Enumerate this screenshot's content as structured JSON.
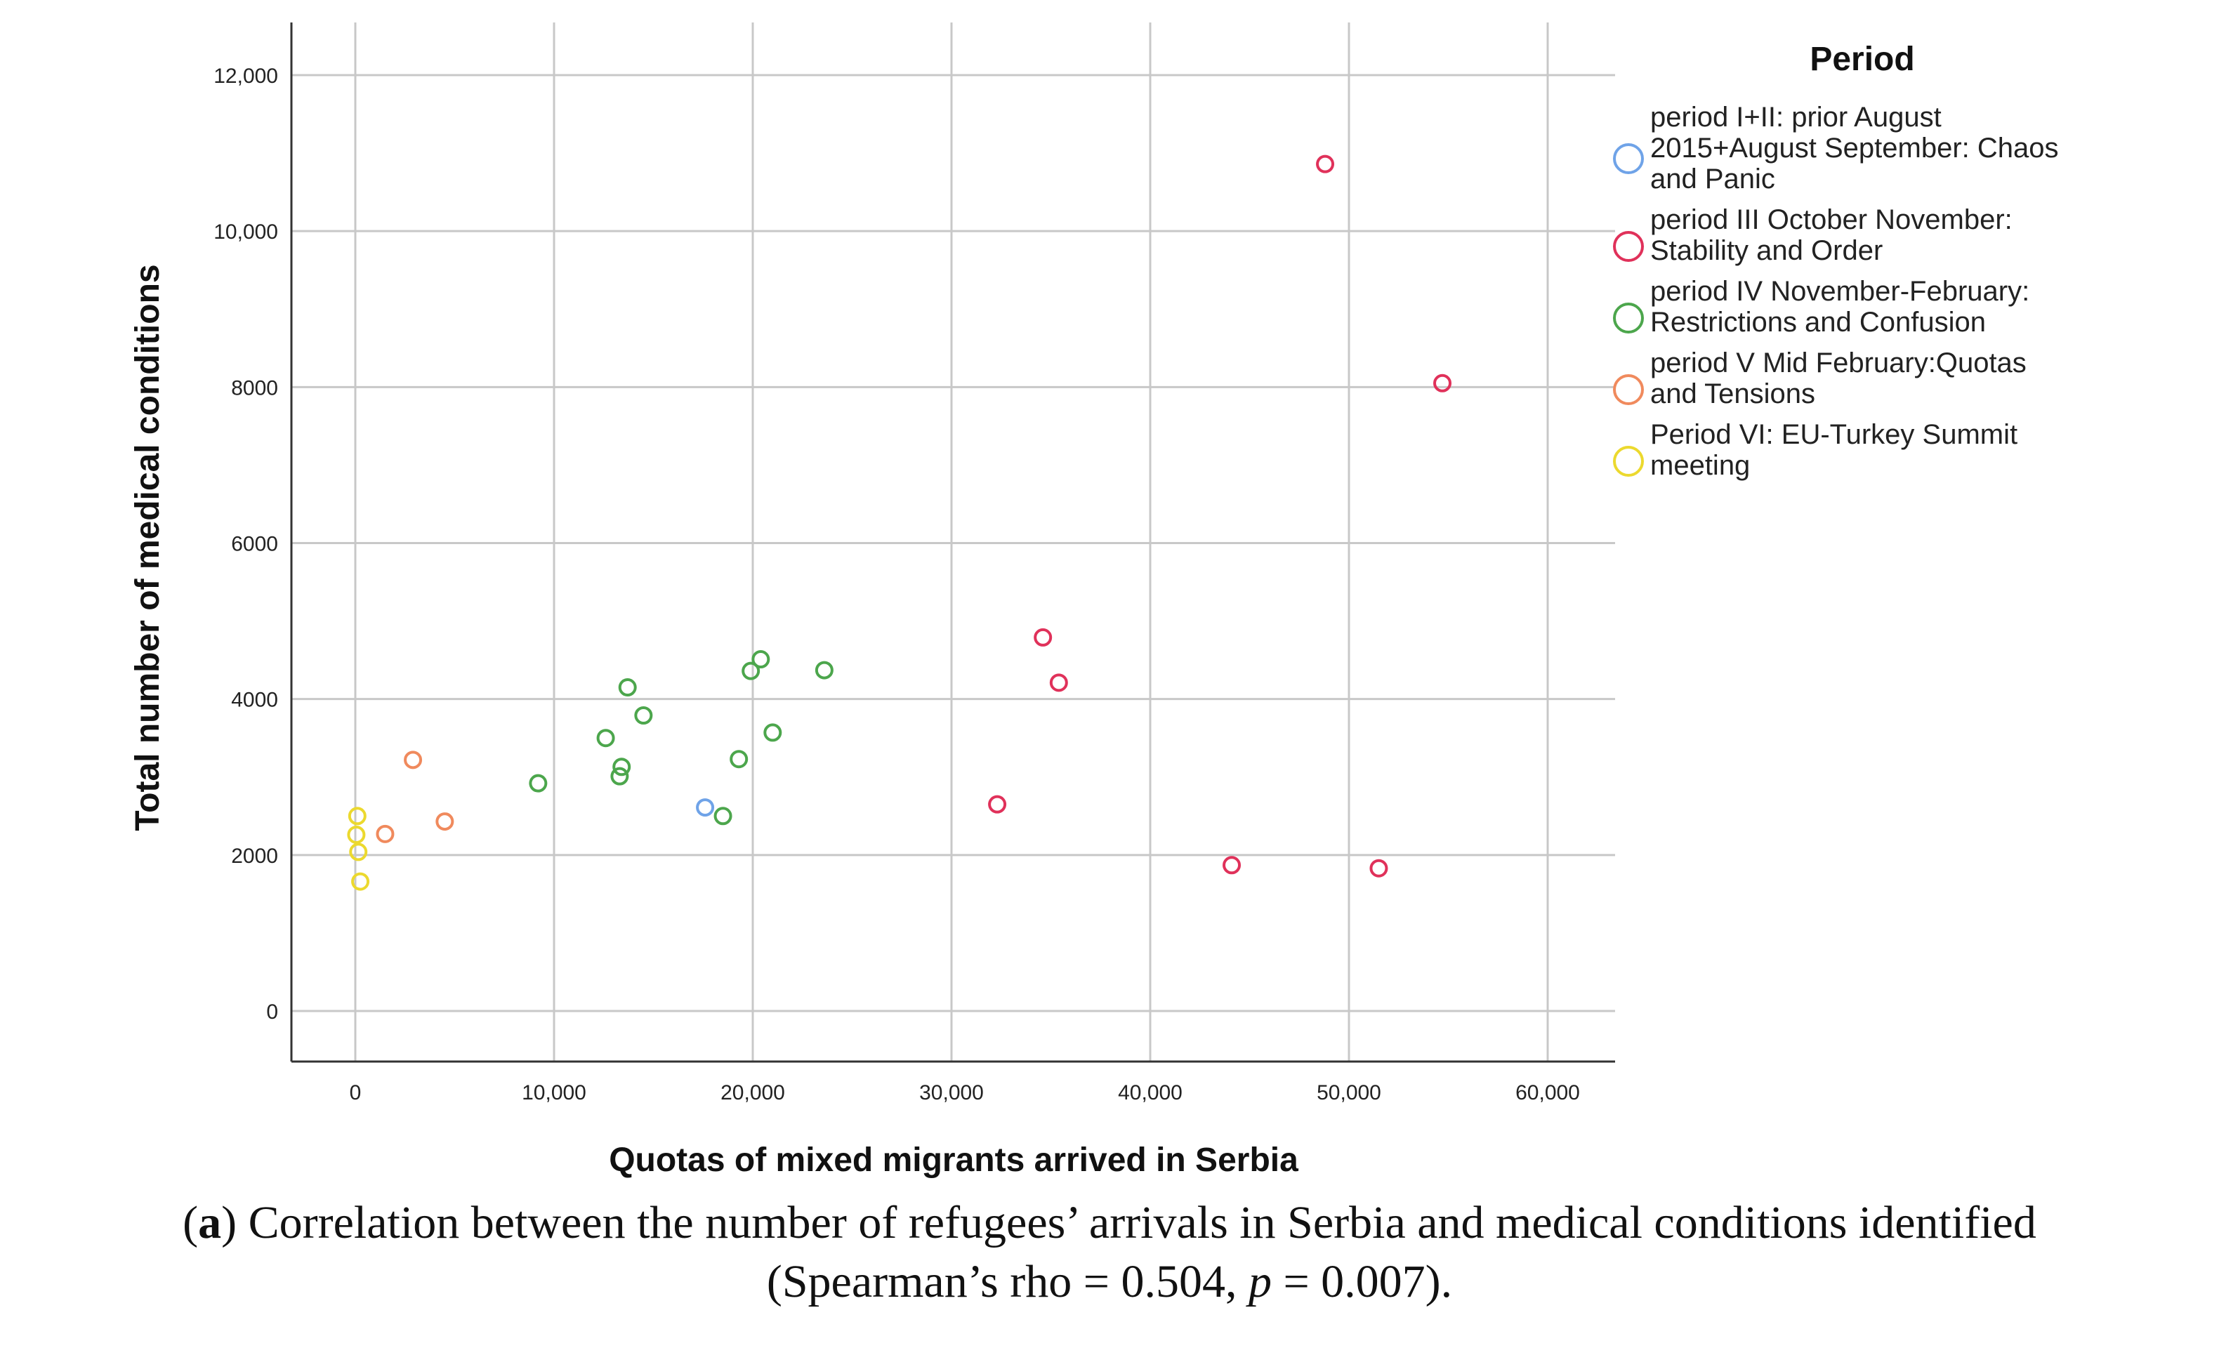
{
  "chart_data": {
    "type": "scatter",
    "title": "",
    "xlabel": "Quotas of mixed migrants arrived in Serbia",
    "ylabel": "Total number of medical conditions",
    "xlim": [
      -3000,
      63000
    ],
    "ylim": [
      -600,
      12600
    ],
    "x_ticks": [
      {
        "value": 0,
        "label": "0"
      },
      {
        "value": 10000,
        "label": "10,000"
      },
      {
        "value": 20000,
        "label": "20,000"
      },
      {
        "value": 30000,
        "label": "30,000"
      },
      {
        "value": 40000,
        "label": "40,000"
      },
      {
        "value": 50000,
        "label": "50,000"
      },
      {
        "value": 60000,
        "label": "60,000"
      }
    ],
    "y_ticks": [
      {
        "value": 0,
        "label": "0"
      },
      {
        "value": 2000,
        "label": "2000"
      },
      {
        "value": 4000,
        "label": "4000"
      },
      {
        "value": 6000,
        "label": "6000"
      },
      {
        "value": 8000,
        "label": "8000"
      },
      {
        "value": 10000,
        "label": "10,000"
      },
      {
        "value": 12000,
        "label": "12,000"
      }
    ],
    "grid": true,
    "legend": {
      "title": "Period",
      "position": "right"
    },
    "series": [
      {
        "name": "period I+II: prior August 2015+August September: Chaos and Panic",
        "name_lines": [
          "period I+II: prior August",
          "2015+August September: Chaos",
          "and Panic"
        ],
        "color": "#6fa3e8",
        "points": [
          [
            17600,
            2610
          ]
        ]
      },
      {
        "name": "period III October November: Stability and Order",
        "name_lines": [
          "period III October November:",
          "Stability and Order"
        ],
        "color": "#e0315a",
        "points": [
          [
            48800,
            10860
          ],
          [
            54700,
            8050
          ],
          [
            34600,
            4790
          ],
          [
            35400,
            4210
          ],
          [
            32300,
            2650
          ],
          [
            44100,
            1870
          ],
          [
            51500,
            1830
          ]
        ]
      },
      {
        "name": "period IV November-February: Restrictions and Confusion",
        "name_lines": [
          "period IV November-February:",
          "Restrictions and Confusion"
        ],
        "color": "#4ca64c",
        "points": [
          [
            20400,
            4510
          ],
          [
            19900,
            4360
          ],
          [
            23600,
            4370
          ],
          [
            13700,
            4150
          ],
          [
            14500,
            3790
          ],
          [
            21000,
            3570
          ],
          [
            12600,
            3500
          ],
          [
            19300,
            3230
          ],
          [
            13400,
            3130
          ],
          [
            13300,
            3010
          ],
          [
            9200,
            2920
          ],
          [
            18500,
            2500
          ]
        ]
      },
      {
        "name": "period V Mid February:Quotas and Tensions",
        "name_lines": [
          "period V Mid February:Quotas",
          "and Tensions"
        ],
        "color": "#f08a5d",
        "points": [
          [
            2900,
            3220
          ],
          [
            4500,
            2430
          ],
          [
            1500,
            2270
          ]
        ]
      },
      {
        "name": "Period VI: EU-Turkey Summit meeting",
        "name_lines": [
          "Period VI: EU-Turkey Summit",
          "meeting"
        ],
        "color": "#ecd92e",
        "points": [
          [
            100,
            2500
          ],
          [
            50,
            2260
          ],
          [
            150,
            2040
          ],
          [
            250,
            1660
          ]
        ]
      }
    ]
  },
  "caption": {
    "label": "a",
    "text_before": ") Correlation between the number of refugees’ arrivals in Serbia and medical conditions identified",
    "line2_a": "(Spearman’s rho = 0.504, ",
    "p_symbol": "p",
    "line2_b": " = 0.007)."
  }
}
